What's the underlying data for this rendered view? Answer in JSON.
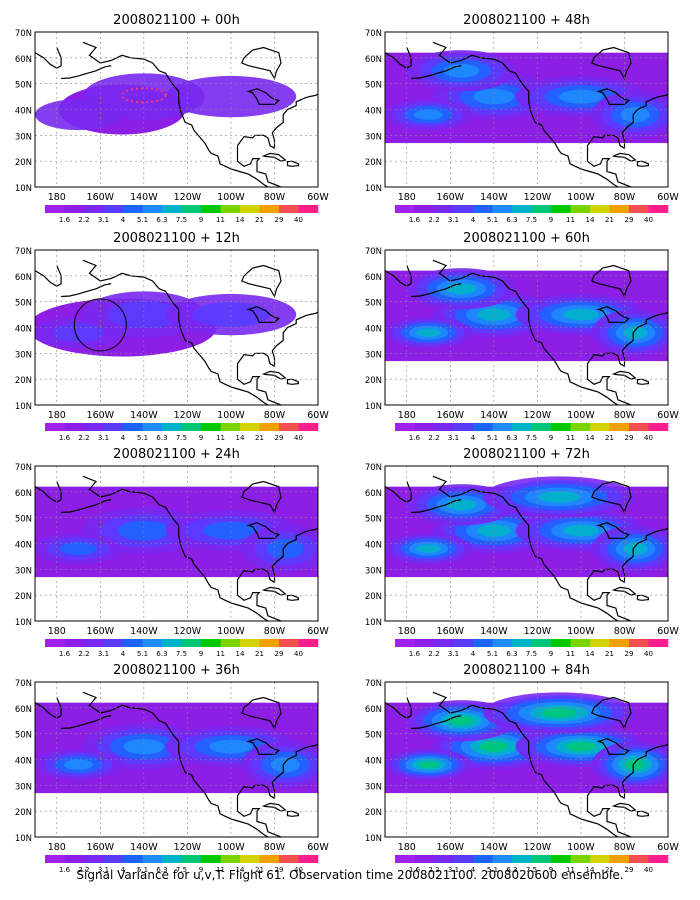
{
  "panels": [
    {
      "title": "2008021100 + 00h",
      "intensity": 0.15
    },
    {
      "title": "2008021100 + 12h",
      "intensity": 0.35
    },
    {
      "title": "2008021100 + 24h",
      "intensity": 0.55
    },
    {
      "title": "2008021100 + 36h",
      "intensity": 0.6
    },
    {
      "title": "2008021100 + 48h",
      "intensity": 0.7
    },
    {
      "title": "2008021100 + 60h",
      "intensity": 0.8
    },
    {
      "title": "2008021100 + 72h",
      "intensity": 0.9
    },
    {
      "title": "2008021100 + 84h",
      "intensity": 1.0
    }
  ],
  "lat_labels": [
    "70N",
    "60N",
    "50N",
    "40N",
    "30N",
    "20N",
    "10N"
  ],
  "lon_labels": [
    "180",
    "160W",
    "140W",
    "120W",
    "100W",
    "80W",
    "60W"
  ],
  "colorbar": {
    "labels": [
      "1.6",
      "2.2",
      "3.1",
      "4",
      "5.1",
      "6.3",
      "7.5",
      "9",
      "11",
      "14",
      "21",
      "29",
      "40"
    ],
    "colors": [
      "#a020f0",
      "#8c1ee6",
      "#7828f0",
      "#5a3cff",
      "#1e64ff",
      "#1e8cff",
      "#00b4c8",
      "#00c878",
      "#00c800",
      "#7ad400",
      "#d2d200",
      "#f0a000",
      "#f05050",
      "#ff1e8c"
    ]
  },
  "caption": "Signal Variance for u,v,T. Flight 61. Observation time 2008021100. 2008020600 ensemble."
}
